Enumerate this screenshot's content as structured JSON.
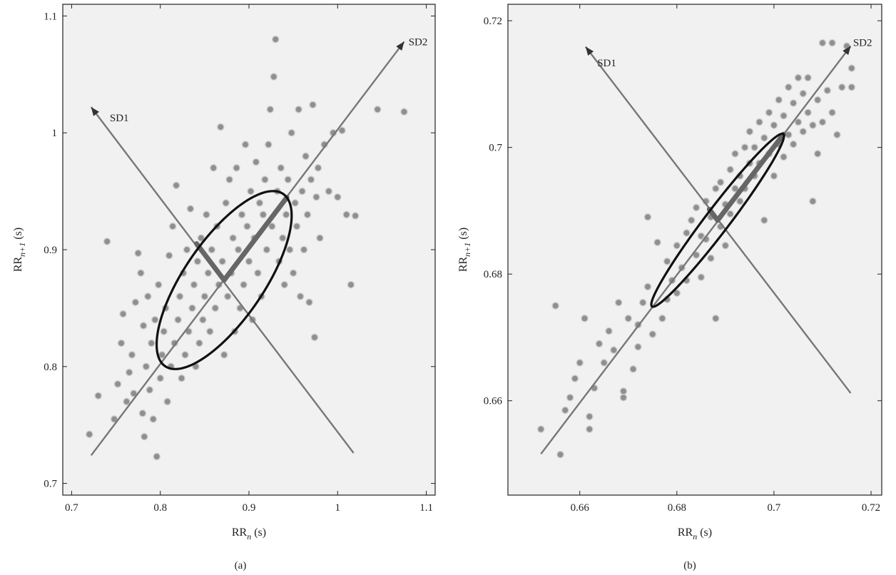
{
  "colors": {
    "plot_background": "#f1f1f1",
    "points": "#8f8f8f",
    "point_rim": "#cfcfcf",
    "axis_lines": "#777777",
    "ellipse": "#111111",
    "frame": "#222222"
  },
  "chart_data": [
    {
      "type": "scatter",
      "panel_label": "(a)",
      "xlabel_base": "RR",
      "xlabel_sub": "n",
      "xlabel_unit": " (s)",
      "ylabel_base": "RR",
      "ylabel_sub": "n+1",
      "ylabel_unit": " (s)",
      "xlim": [
        0.69,
        1.11
      ],
      "ylim": [
        0.69,
        1.11
      ],
      "xticks": [
        0.7,
        0.8,
        0.9,
        1.0,
        1.1
      ],
      "xtick_labels": [
        "0.7",
        "0.8",
        "0.9",
        "1",
        "1.1"
      ],
      "yticks": [
        0.7,
        0.8,
        0.9,
        1.0,
        1.1
      ],
      "ytick_labels": [
        "0.7",
        "0.8",
        "0.9",
        "1",
        "1.1"
      ],
      "annotations": [
        {
          "text": "SD1",
          "x": 0.743,
          "y": 1.01
        },
        {
          "text": "SD2",
          "x": 1.08,
          "y": 1.075
        }
      ],
      "sd_axes": [
        {
          "name": "SD1",
          "from": [
            1.018,
            0.726
          ],
          "to": [
            0.722,
            1.022
          ]
        },
        {
          "name": "SD2",
          "from": [
            0.722,
            0.724
          ],
          "to": [
            1.075,
            1.078
          ]
        }
      ],
      "ellipse": {
        "center": [
          0.872,
          0.874
        ],
        "sd1": 0.04,
        "sd2": 0.1
      },
      "points": [
        [
          0.72,
          0.742
        ],
        [
          0.73,
          0.775
        ],
        [
          0.74,
          0.907
        ],
        [
          0.748,
          0.755
        ],
        [
          0.752,
          0.785
        ],
        [
          0.756,
          0.82
        ],
        [
          0.758,
          0.845
        ],
        [
          0.762,
          0.77
        ],
        [
          0.765,
          0.795
        ],
        [
          0.768,
          0.81
        ],
        [
          0.77,
          0.777
        ],
        [
          0.772,
          0.855
        ],
        [
          0.775,
          0.897
        ],
        [
          0.778,
          0.88
        ],
        [
          0.78,
          0.76
        ],
        [
          0.781,
          0.835
        ],
        [
          0.782,
          0.74
        ],
        [
          0.784,
          0.8
        ],
        [
          0.786,
          0.86
        ],
        [
          0.788,
          0.78
        ],
        [
          0.79,
          0.82
        ],
        [
          0.792,
          0.755
        ],
        [
          0.794,
          0.84
        ],
        [
          0.796,
          0.723
        ],
        [
          0.798,
          0.87
        ],
        [
          0.8,
          0.79
        ],
        [
          0.802,
          0.81
        ],
        [
          0.804,
          0.83
        ],
        [
          0.806,
          0.85
        ],
        [
          0.808,
          0.77
        ],
        [
          0.81,
          0.895
        ],
        [
          0.812,
          0.8
        ],
        [
          0.814,
          0.92
        ],
        [
          0.816,
          0.82
        ],
        [
          0.818,
          0.955
        ],
        [
          0.82,
          0.84
        ],
        [
          0.822,
          0.86
        ],
        [
          0.824,
          0.79
        ],
        [
          0.826,
          0.88
        ],
        [
          0.828,
          0.81
        ],
        [
          0.83,
          0.9
        ],
        [
          0.832,
          0.83
        ],
        [
          0.834,
          0.935
        ],
        [
          0.836,
          0.85
        ],
        [
          0.838,
          0.87
        ],
        [
          0.84,
          0.8
        ],
        [
          0.842,
          0.89
        ],
        [
          0.844,
          0.82
        ],
        [
          0.846,
          0.91
        ],
        [
          0.848,
          0.84
        ],
        [
          0.85,
          0.86
        ],
        [
          0.852,
          0.93
        ],
        [
          0.854,
          0.88
        ],
        [
          0.856,
          0.83
        ],
        [
          0.858,
          0.9
        ],
        [
          0.86,
          0.97
        ],
        [
          0.862,
          0.85
        ],
        [
          0.864,
          0.92
        ],
        [
          0.866,
          0.87
        ],
        [
          0.868,
          1.005
        ],
        [
          0.87,
          0.89
        ],
        [
          0.872,
          0.81
        ],
        [
          0.874,
          0.94
        ],
        [
          0.876,
          0.86
        ],
        [
          0.878,
          0.96
        ],
        [
          0.88,
          0.88
        ],
        [
          0.882,
          0.91
        ],
        [
          0.884,
          0.83
        ],
        [
          0.886,
          0.97
        ],
        [
          0.888,
          0.9
        ],
        [
          0.89,
          0.85
        ],
        [
          0.892,
          0.93
        ],
        [
          0.894,
          0.87
        ],
        [
          0.896,
          0.99
        ],
        [
          0.898,
          0.92
        ],
        [
          0.9,
          0.89
        ],
        [
          0.902,
          0.95
        ],
        [
          0.904,
          0.84
        ],
        [
          0.906,
          0.91
        ],
        [
          0.908,
          0.975
        ],
        [
          0.91,
          0.88
        ],
        [
          0.912,
          0.94
        ],
        [
          0.914,
          0.86
        ],
        [
          0.916,
          0.93
        ],
        [
          0.918,
          0.96
        ],
        [
          0.92,
          0.9
        ],
        [
          0.922,
          0.99
        ],
        [
          0.924,
          1.02
        ],
        [
          0.926,
          0.92
        ],
        [
          0.928,
          1.048
        ],
        [
          0.93,
          1.08
        ],
        [
          0.932,
          0.95
        ],
        [
          0.934,
          0.89
        ],
        [
          0.936,
          0.97
        ],
        [
          0.938,
          0.91
        ],
        [
          0.94,
          0.87
        ],
        [
          0.942,
          0.93
        ],
        [
          0.944,
          0.96
        ],
        [
          0.946,
          0.9
        ],
        [
          0.948,
          1.0
        ],
        [
          0.95,
          0.88
        ],
        [
          0.952,
          0.94
        ],
        [
          0.954,
          0.92
        ],
        [
          0.956,
          1.02
        ],
        [
          0.958,
          0.86
        ],
        [
          0.96,
          0.95
        ],
        [
          0.962,
          0.9
        ],
        [
          0.964,
          0.98
        ],
        [
          0.966,
          0.93
        ],
        [
          0.968,
          0.855
        ],
        [
          0.97,
          0.96
        ],
        [
          0.972,
          1.024
        ],
        [
          0.974,
          0.825
        ],
        [
          0.976,
          0.945
        ],
        [
          0.978,
          0.97
        ],
        [
          0.98,
          0.91
        ],
        [
          0.985,
          0.99
        ],
        [
          0.99,
          0.95
        ],
        [
          0.995,
          1.0
        ],
        [
          1.0,
          0.945
        ],
        [
          1.005,
          1.002
        ],
        [
          1.01,
          0.93
        ],
        [
          1.015,
          0.87
        ],
        [
          1.02,
          0.929
        ],
        [
          1.045,
          1.02
        ],
        [
          1.075,
          1.018
        ]
      ]
    },
    {
      "type": "scatter",
      "panel_label": "(b)",
      "xlabel_base": "RR",
      "xlabel_sub": "n",
      "xlabel_unit": " (s)",
      "ylabel_base": "RR",
      "ylabel_sub": "n+1",
      "ylabel_unit": " (s)",
      "xlim": [
        0.6452,
        0.7222
      ],
      "ylim": [
        0.6451,
        0.7226
      ],
      "xticks": [
        0.66,
        0.68,
        0.7,
        0.72
      ],
      "xtick_labels": [
        "0.66",
        "0.68",
        "0.7",
        "0.72"
      ],
      "yticks": [
        0.66,
        0.68,
        0.7,
        0.72
      ],
      "ytick_labels": [
        "0.66",
        "0.68",
        "0.7",
        "0.72"
      ],
      "annotations": [
        {
          "text": "SD1",
          "x": 0.6636,
          "y": 0.7128
        },
        {
          "text": "SD2",
          "x": 0.7163,
          "y": 0.716
        }
      ],
      "sd_axes": [
        {
          "name": "SD1",
          "from": [
            0.7158,
            0.6612
          ],
          "to": [
            0.6612,
            0.7159
          ]
        },
        {
          "name": "SD2",
          "from": [
            0.652,
            0.6516
          ],
          "to": [
            0.7158,
            0.716
          ]
        }
      ],
      "ellipse": {
        "center": [
          0.6884,
          0.6885
        ],
        "sd1": 0.0022,
        "sd2": 0.0192
      },
      "points": [
        [
          0.652,
          0.6555
        ],
        [
          0.655,
          0.675
        ],
        [
          0.656,
          0.6515
        ],
        [
          0.657,
          0.6585
        ],
        [
          0.658,
          0.6605
        ],
        [
          0.659,
          0.6635
        ],
        [
          0.66,
          0.666
        ],
        [
          0.661,
          0.673
        ],
        [
          0.662,
          0.6575
        ],
        [
          0.662,
          0.6555
        ],
        [
          0.663,
          0.662
        ],
        [
          0.664,
          0.669
        ],
        [
          0.665,
          0.666
        ],
        [
          0.666,
          0.671
        ],
        [
          0.667,
          0.668
        ],
        [
          0.668,
          0.6755
        ],
        [
          0.669,
          0.6605
        ],
        [
          0.669,
          0.6615
        ],
        [
          0.67,
          0.673
        ],
        [
          0.671,
          0.665
        ],
        [
          0.672,
          0.672
        ],
        [
          0.672,
          0.6685
        ],
        [
          0.673,
          0.6755
        ],
        [
          0.674,
          0.678
        ],
        [
          0.674,
          0.689
        ],
        [
          0.675,
          0.6705
        ],
        [
          0.676,
          0.685
        ],
        [
          0.677,
          0.673
        ],
        [
          0.678,
          0.676
        ],
        [
          0.678,
          0.682
        ],
        [
          0.679,
          0.679
        ],
        [
          0.68,
          0.6845
        ],
        [
          0.68,
          0.677
        ],
        [
          0.681,
          0.681
        ],
        [
          0.682,
          0.6865
        ],
        [
          0.682,
          0.679
        ],
        [
          0.683,
          0.6885
        ],
        [
          0.684,
          0.683
        ],
        [
          0.684,
          0.6905
        ],
        [
          0.685,
          0.686
        ],
        [
          0.685,
          0.6795
        ],
        [
          0.686,
          0.6915
        ],
        [
          0.686,
          0.6855
        ],
        [
          0.687,
          0.689
        ],
        [
          0.687,
          0.6825
        ],
        [
          0.688,
          0.673
        ],
        [
          0.688,
          0.6935
        ],
        [
          0.689,
          0.6875
        ],
        [
          0.689,
          0.6945
        ],
        [
          0.69,
          0.691
        ],
        [
          0.69,
          0.6845
        ],
        [
          0.691,
          0.6965
        ],
        [
          0.691,
          0.6895
        ],
        [
          0.692,
          0.6935
        ],
        [
          0.692,
          0.699
        ],
        [
          0.693,
          0.6915
        ],
        [
          0.693,
          0.6955
        ],
        [
          0.694,
          0.7
        ],
        [
          0.694,
          0.6935
        ],
        [
          0.695,
          0.6975
        ],
        [
          0.695,
          0.7025
        ],
        [
          0.696,
          0.6955
        ],
        [
          0.696,
          0.7
        ],
        [
          0.697,
          0.704
        ],
        [
          0.697,
          0.6975
        ],
        [
          0.698,
          0.7015
        ],
        [
          0.698,
          0.6885
        ],
        [
          0.699,
          0.7055
        ],
        [
          0.699,
          0.699
        ],
        [
          0.7,
          0.7035
        ],
        [
          0.7,
          0.6955
        ],
        [
          0.701,
          0.7075
        ],
        [
          0.701,
          0.7005
        ],
        [
          0.702,
          0.705
        ],
        [
          0.702,
          0.6985
        ],
        [
          0.703,
          0.7095
        ],
        [
          0.703,
          0.702
        ],
        [
          0.704,
          0.707
        ],
        [
          0.704,
          0.7005
        ],
        [
          0.705,
          0.711
        ],
        [
          0.705,
          0.704
        ],
        [
          0.706,
          0.7085
        ],
        [
          0.706,
          0.7025
        ],
        [
          0.707,
          0.7055
        ],
        [
          0.707,
          0.711
        ],
        [
          0.708,
          0.7035
        ],
        [
          0.708,
          0.6915
        ],
        [
          0.709,
          0.7075
        ],
        [
          0.709,
          0.699
        ],
        [
          0.71,
          0.7165
        ],
        [
          0.71,
          0.704
        ],
        [
          0.711,
          0.709
        ],
        [
          0.712,
          0.7165
        ],
        [
          0.712,
          0.7055
        ],
        [
          0.713,
          0.702
        ],
        [
          0.714,
          0.7095
        ],
        [
          0.715,
          0.716
        ],
        [
          0.716,
          0.7125
        ],
        [
          0.716,
          0.7095
        ]
      ]
    }
  ]
}
